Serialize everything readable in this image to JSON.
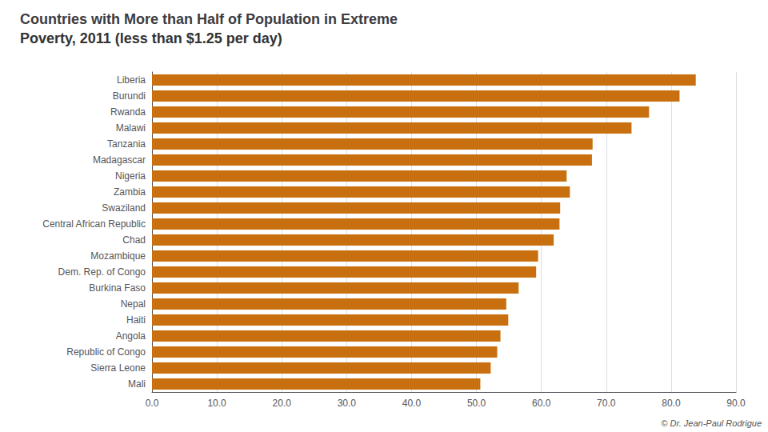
{
  "chart_data": {
    "type": "bar",
    "orientation": "horizontal",
    "title": "Countries with More than Half of Population in Extreme",
    "subtitle": "Poverty, 2011 (less than $1.25 per day)",
    "annotations": [
      "© Dr. Jean-Paul Rodrigue"
    ],
    "categories": [
      "Mali",
      "Sierra Leone",
      "Republic of Congo",
      "Angola",
      "Haiti",
      "Nepal",
      "Burkina Faso",
      "Dem. Rep. of Congo",
      "Mozambique",
      "Chad",
      "Central African Republic",
      "Swaziland",
      "Zambia",
      "Nigeria",
      "Madagascar",
      "Tanzania",
      "Malawi",
      "Rwanda",
      "Burundi",
      "Liberia"
    ],
    "values": [
      50.6,
      52.2,
      53.2,
      53.7,
      54.9,
      54.6,
      56.5,
      59.2,
      59.5,
      61.9,
      62.8,
      62.9,
      64.4,
      63.9,
      67.8,
      67.9,
      73.9,
      76.6,
      81.3,
      83.8
    ],
    "color": "#C87010",
    "xlim": [
      0,
      90
    ],
    "xticks": [
      {
        "value": 0,
        "label": "0.0"
      },
      {
        "value": 10,
        "label": "10.0"
      },
      {
        "value": 20,
        "label": "20.0"
      },
      {
        "value": 30,
        "label": "30.0"
      },
      {
        "value": 40,
        "label": "40.0"
      },
      {
        "value": 50,
        "label": "50.0"
      },
      {
        "value": 60,
        "label": "60.0"
      },
      {
        "value": 70,
        "label": "70.0"
      },
      {
        "value": 80,
        "label": "80.0"
      },
      {
        "value": 90,
        "label": "90.0"
      }
    ],
    "grid": true
  }
}
